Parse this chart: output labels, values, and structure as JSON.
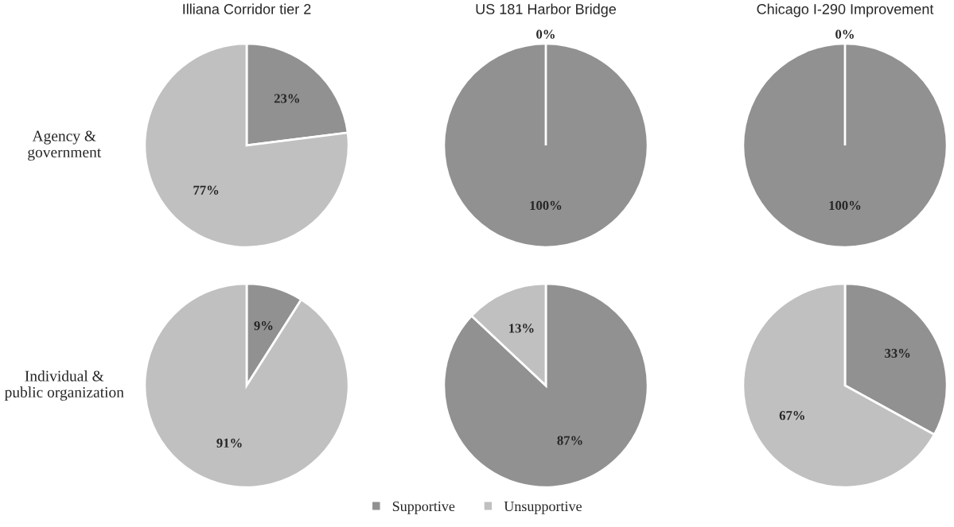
{
  "chart_data": [
    {
      "type": "pie",
      "title": "Illiana Corridor tier 2",
      "ylabel": "Agency &\ngovernment",
      "categories": [
        "Supportive",
        "Unsupportive"
      ],
      "values": [
        23,
        77
      ],
      "value_labels": [
        "23%",
        "77%"
      ],
      "colors": [
        "#919191",
        "#c0c0c0"
      ],
      "legend": "bottom"
    },
    {
      "type": "pie",
      "title": "US 181 Harbor Bridge",
      "categories": [
        null,
        null
      ],
      "values": [
        100,
        0
      ],
      "value_labels": [
        "100%",
        "0%"
      ],
      "colors": [
        "#919191",
        "#c0c0c0"
      ]
    },
    {
      "type": "pie",
      "title": "Chicago I-290 Improvement",
      "categories": [
        null,
        null
      ],
      "values": [
        100,
        0
      ],
      "value_labels": [
        "100%",
        "0%"
      ],
      "colors": [
        "#919191",
        "#c0c0c0"
      ]
    },
    {
      "type": "pie",
      "ylabel": "Individual &\npublic organization",
      "categories": [
        null,
        null
      ],
      "values": [
        9,
        91
      ],
      "value_labels": [
        "9%",
        "91%"
      ],
      "colors": [
        "#919191",
        "#c0c0c0"
      ]
    },
    {
      "type": "pie",
      "categories": [
        null,
        null
      ],
      "values": [
        87,
        13
      ],
      "value_labels": [
        "87%",
        "13%"
      ],
      "colors": [
        "#919191",
        "#c0c0c0"
      ]
    },
    {
      "type": "pie",
      "categories": [
        null,
        null
      ],
      "values": [
        33,
        67
      ],
      "value_labels": [
        "33%",
        "67%"
      ],
      "colors": [
        "#919191",
        "#c0c0c0"
      ]
    }
  ]
}
